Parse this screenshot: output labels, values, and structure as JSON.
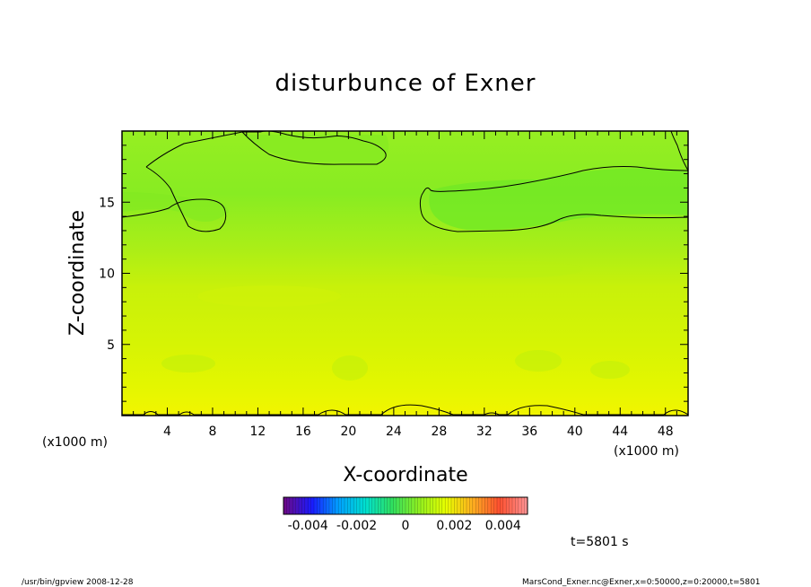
{
  "chart_data": {
    "type": "heatmap",
    "title": "disturbunce of Exner",
    "xlabel": "X-coordinate",
    "ylabel": "Z-coordinate",
    "x_unit_left": "(x1000 m)",
    "x_unit_right": "(x1000 m)",
    "xlim": [
      0,
      50
    ],
    "ylim": [
      0,
      20
    ],
    "x_ticks": [
      4,
      8,
      12,
      16,
      20,
      24,
      28,
      32,
      36,
      40,
      44,
      48
    ],
    "x_tick_labels": [
      "4",
      "8",
      "12",
      "16",
      "20",
      "24",
      "28",
      "32",
      "36",
      "40",
      "44",
      "48"
    ],
    "y_ticks": [
      5,
      10,
      15
    ],
    "y_tick_labels": [
      "5",
      "10",
      "15"
    ],
    "colorbar": {
      "range": [
        -0.005,
        0.005
      ],
      "ticks": [
        -0.004,
        -0.002,
        0,
        0.002,
        0.004
      ],
      "tick_labels": [
        "-0.004",
        "-0.002",
        "0",
        "0.002",
        "0.004"
      ],
      "colormap": [
        "#6a0a8a",
        "#1a1aff",
        "#00a0ff",
        "#00e0d0",
        "#30e060",
        "#90f020",
        "#e8ff00",
        "#ffb020",
        "#ff5030",
        "#ff9090"
      ]
    },
    "field_description_levels": [
      {
        "z": 0,
        "value": 0.0011
      },
      {
        "z": 4,
        "value": 0.0008
      },
      {
        "z": 8,
        "value": 0.0006
      },
      {
        "z": 11,
        "value": 0.0003
      },
      {
        "z": 14,
        "value": 0.0001
      },
      {
        "z": 17,
        "value": 0.0
      },
      {
        "z": 20,
        "value": 0.0001
      }
    ],
    "contour_level": 0
  },
  "annotations": {
    "time": "t=5801 s",
    "footer_left": "/usr/bin/gpview  2008-12-28",
    "footer_right": "MarsCond_Exner.nc@Exner,x=0:50000,z=0:20000,t=5801"
  }
}
